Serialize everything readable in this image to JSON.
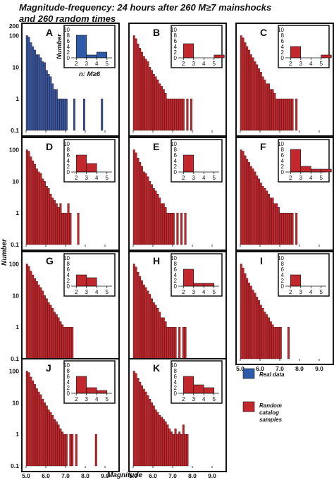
{
  "title_line1": "Magnitude-frequency: 24 hours after 260 M≥7 mainshocks",
  "title_line2": "and 260 random times",
  "xlabel": "Magnitude",
  "ylabel": "Number",
  "inset_ylabel": "Number",
  "inset_xlabel": "n: M≥6",
  "legend": [
    {
      "label": "Real data",
      "color": "#2f5aa8"
    },
    {
      "label": "Random catalog samples",
      "label_lines": [
        "Random",
        "catalog",
        "samples"
      ],
      "color": "#c1272d"
    }
  ],
  "colors": {
    "real": "#2f5aa8",
    "random": "#c1272d"
  },
  "chart_data": [
    {
      "type": "bar",
      "panel": "A",
      "series": "Real data",
      "log_y": true,
      "xlim": [
        5.0,
        9.5
      ],
      "ylim": [
        0.1,
        200
      ],
      "x_ticks": [
        "5.0",
        "6.0",
        "7.0",
        "8.0",
        "9.0"
      ],
      "y_ticks": [
        "0.1",
        "1",
        "10",
        "100",
        "200"
      ],
      "x": [
        5.0,
        5.1,
        5.2,
        5.3,
        5.4,
        5.5,
        5.6,
        5.7,
        5.8,
        5.9,
        6.0,
        6.1,
        6.2,
        6.3,
        6.4,
        6.5,
        6.6,
        6.7,
        6.8,
        6.9,
        7.0,
        7.4,
        7.9,
        8.8
      ],
      "values": [
        100,
        90,
        60,
        45,
        35,
        25,
        25,
        20,
        15,
        14,
        8,
        6,
        5,
        3,
        2,
        2,
        1,
        1,
        1,
        1,
        1,
        1,
        1,
        1
      ],
      "inset": {
        "x": [
          2,
          3,
          4,
          5
        ],
        "values": [
          8,
          1,
          2,
          0
        ],
        "ylim": [
          0,
          10
        ],
        "y_ticks": [
          "0",
          "2",
          "4",
          "6",
          "8",
          "10"
        ],
        "x_ticks": [
          "2",
          "3",
          "4",
          "5"
        ]
      }
    },
    {
      "type": "bar",
      "panel": "B",
      "series": "Random catalog samples",
      "log_y": true,
      "xlim": [
        5.0,
        9.5
      ],
      "ylim": [
        0.1,
        200
      ],
      "x_ticks": [
        "5.0",
        "6.0",
        "7.0",
        "8.0",
        "9.0"
      ],
      "x": [
        5.0,
        5.1,
        5.2,
        5.3,
        5.4,
        5.5,
        5.6,
        5.7,
        5.8,
        5.9,
        6.0,
        6.1,
        6.2,
        6.3,
        6.4,
        6.5,
        6.6,
        6.7,
        6.8,
        6.9,
        7.0,
        7.1,
        7.2,
        7.3,
        7.4,
        7.5,
        7.6,
        7.7,
        7.8,
        7.9
      ],
      "values": [
        100,
        80,
        55,
        40,
        30,
        22,
        18,
        15,
        10,
        8,
        6,
        5,
        4,
        3,
        2.5,
        2,
        1.5,
        1,
        1,
        1,
        1,
        1,
        1,
        1,
        1,
        1,
        0.1,
        1,
        0.1,
        1
      ],
      "inset": {
        "x": [
          2,
          3,
          4,
          5
        ],
        "values": [
          5,
          0,
          0,
          1
        ],
        "ylim": [
          0,
          10
        ],
        "y_ticks": [
          "0",
          "2",
          "4",
          "6",
          "8",
          "10"
        ],
        "x_ticks": [
          "2",
          "3",
          "4",
          "5"
        ]
      }
    },
    {
      "type": "bar",
      "panel": "C",
      "series": "Random catalog samples",
      "log_y": true,
      "xlim": [
        5.0,
        9.5
      ],
      "ylim": [
        0.1,
        200
      ],
      "x_ticks": [
        "5.0",
        "6.0",
        "7.0",
        "8.0",
        "9.0"
      ],
      "x": [
        5.0,
        5.1,
        5.2,
        5.3,
        5.4,
        5.5,
        5.6,
        5.7,
        5.8,
        5.9,
        6.0,
        6.1,
        6.2,
        6.3,
        6.4,
        6.5,
        6.6,
        6.7,
        6.8,
        6.9,
        7.0,
        7.1,
        7.2,
        7.3,
        7.4,
        7.5,
        7.6,
        7.7,
        7.8
      ],
      "values": [
        100,
        85,
        60,
        45,
        35,
        25,
        20,
        15,
        12,
        9,
        7,
        5,
        4,
        3,
        3,
        2,
        2,
        1.5,
        1,
        1,
        1,
        1,
        1,
        1,
        1,
        1,
        1,
        0.1,
        1
      ],
      "inset": {
        "x": [
          2,
          3,
          4,
          5
        ],
        "values": [
          4,
          0,
          0,
          1
        ],
        "ylim": [
          0,
          10
        ],
        "y_ticks": [
          "0",
          "2",
          "4",
          "6",
          "8",
          "10"
        ],
        "x_ticks": [
          "2",
          "3",
          "4",
          "5"
        ]
      }
    },
    {
      "type": "bar",
      "panel": "D",
      "series": "Random catalog samples",
      "log_y": true,
      "xlim": [
        5.0,
        9.5
      ],
      "ylim": [
        0.1,
        200
      ],
      "x_ticks": [
        "5.0",
        "6.0",
        "7.0",
        "8.0",
        "9.0"
      ],
      "x": [
        5.0,
        5.1,
        5.2,
        5.3,
        5.4,
        5.5,
        5.6,
        5.7,
        5.8,
        5.9,
        6.0,
        6.1,
        6.2,
        6.3,
        6.4,
        6.5,
        6.6,
        6.7,
        6.8,
        6.9,
        7.0,
        7.1,
        7.2,
        7.6
      ],
      "values": [
        100,
        90,
        60,
        45,
        35,
        25,
        20,
        18,
        12,
        10,
        7,
        6,
        4,
        3,
        2.5,
        2,
        1.5,
        2,
        1,
        1,
        1,
        2,
        1,
        1
      ],
      "inset": {
        "x": [
          2,
          3,
          4,
          5
        ],
        "values": [
          6,
          3,
          0,
          0
        ],
        "ylim": [
          0,
          10
        ],
        "y_ticks": [
          "0",
          "2",
          "4",
          "6",
          "8",
          "10"
        ],
        "x_ticks": [
          "2",
          "3",
          "4",
          "5"
        ]
      }
    },
    {
      "type": "bar",
      "panel": "E",
      "series": "Random catalog samples",
      "log_y": true,
      "xlim": [
        5.0,
        9.5
      ],
      "ylim": [
        0.1,
        200
      ],
      "x_ticks": [
        "5.0",
        "6.0",
        "7.0",
        "8.0",
        "9.0"
      ],
      "x": [
        5.0,
        5.1,
        5.2,
        5.3,
        5.4,
        5.5,
        5.6,
        5.7,
        5.8,
        5.9,
        6.0,
        6.1,
        6.2,
        6.3,
        6.4,
        6.5,
        6.6,
        6.7,
        6.8,
        6.9,
        7.0,
        7.2,
        7.4,
        7.6
      ],
      "values": [
        100,
        80,
        55,
        40,
        30,
        20,
        18,
        14,
        10,
        8,
        6,
        5,
        4,
        3,
        2,
        2,
        1.5,
        1,
        1,
        1,
        1,
        1,
        1,
        1
      ],
      "inset": {
        "x": [
          2,
          3,
          4,
          5
        ],
        "values": [
          6,
          0,
          0,
          0
        ],
        "ylim": [
          0,
          10
        ],
        "y_ticks": [
          "0",
          "2",
          "4",
          "6",
          "8",
          "10"
        ],
        "x_ticks": [
          "2",
          "3",
          "4",
          "5"
        ]
      }
    },
    {
      "type": "bar",
      "panel": "F",
      "series": "Random catalog samples",
      "log_y": true,
      "xlim": [
        5.0,
        9.5
      ],
      "ylim": [
        0.1,
        200
      ],
      "x_ticks": [
        "5.0",
        "6.0",
        "7.0",
        "8.0",
        "9.0"
      ],
      "x": [
        5.0,
        5.1,
        5.2,
        5.3,
        5.4,
        5.5,
        5.6,
        5.7,
        5.8,
        5.9,
        6.0,
        6.1,
        6.2,
        6.3,
        6.4,
        6.5,
        6.6,
        6.7,
        6.8,
        6.9,
        7.0,
        7.1,
        7.2,
        7.3,
        7.4,
        7.5,
        7.6,
        7.7,
        7.8
      ],
      "values": [
        100,
        90,
        65,
        50,
        40,
        30,
        25,
        20,
        15,
        12,
        9,
        7,
        6,
        5,
        4,
        3,
        3,
        2,
        2,
        1.5,
        1,
        1,
        1,
        1,
        1,
        1,
        1,
        0.1,
        1
      ],
      "inset": {
        "x": [
          2,
          3,
          4,
          5
        ],
        "values": [
          8,
          2,
          1,
          1
        ],
        "ylim": [
          0,
          10
        ],
        "y_ticks": [
          "0",
          "2",
          "4",
          "6",
          "8",
          "10"
        ],
        "x_ticks": [
          "2",
          "3",
          "4",
          "5"
        ]
      }
    },
    {
      "type": "bar",
      "panel": "G",
      "series": "Random catalog samples",
      "log_y": true,
      "xlim": [
        5.0,
        9.5
      ],
      "ylim": [
        0.1,
        200
      ],
      "x_ticks": [
        "5.0",
        "6.0",
        "7.0",
        "8.0",
        "9.0"
      ],
      "x": [
        5.0,
        5.1,
        5.2,
        5.3,
        5.4,
        5.5,
        5.6,
        5.7,
        5.8,
        5.9,
        6.0,
        6.1,
        6.2,
        6.3,
        6.4,
        6.5,
        6.6,
        6.7,
        6.8,
        6.9,
        7.0,
        7.1,
        7.2,
        7.3
      ],
      "values": [
        100,
        85,
        60,
        45,
        35,
        28,
        22,
        18,
        14,
        10,
        8,
        6,
        5,
        4,
        3,
        2.5,
        2,
        1.5,
        1.2,
        1,
        1,
        1,
        1,
        1
      ],
      "inset": {
        "x": [
          2,
          3,
          4,
          5
        ],
        "values": [
          4,
          3,
          0,
          0
        ],
        "ylim": [
          0,
          10
        ],
        "y_ticks": [
          "0",
          "2",
          "4",
          "6",
          "8",
          "10"
        ],
        "x_ticks": [
          "2",
          "3",
          "4",
          "5"
        ]
      }
    },
    {
      "type": "bar",
      "panel": "H",
      "series": "Random catalog samples",
      "log_y": true,
      "xlim": [
        5.0,
        9.5
      ],
      "ylim": [
        0.1,
        200
      ],
      "x_ticks": [
        "5.0",
        "6.0",
        "7.0",
        "8.0",
        "9.0"
      ],
      "x": [
        5.0,
        5.1,
        5.2,
        5.3,
        5.4,
        5.5,
        5.6,
        5.7,
        5.8,
        5.9,
        6.0,
        6.1,
        6.2,
        6.3,
        6.4,
        6.5,
        6.6,
        6.7,
        6.8,
        6.9,
        7.0,
        7.1,
        7.3,
        7.5,
        7.6
      ],
      "values": [
        100,
        80,
        55,
        40,
        30,
        22,
        18,
        14,
        11,
        8,
        6,
        5,
        4,
        3,
        2,
        2,
        1.5,
        1,
        1,
        1,
        1,
        1,
        1,
        1,
        1
      ],
      "inset": {
        "x": [
          2,
          3,
          4,
          5
        ],
        "values": [
          6,
          1,
          1,
          0
        ],
        "ylim": [
          0,
          10
        ],
        "y_ticks": [
          "0",
          "2",
          "4",
          "6",
          "8",
          "10"
        ],
        "x_ticks": [
          "2",
          "3",
          "4",
          "5"
        ]
      }
    },
    {
      "type": "bar",
      "panel": "I",
      "series": "Random catalog samples",
      "log_y": true,
      "xlim": [
        5.0,
        9.5
      ],
      "ylim": [
        0.1,
        200
      ],
      "x_ticks": [
        "5.0",
        "6.0",
        "7.0",
        "8.0",
        "9.0"
      ],
      "x": [
        5.0,
        5.1,
        5.2,
        5.3,
        5.4,
        5.5,
        5.6,
        5.7,
        5.8,
        5.9,
        6.0,
        6.1,
        6.2,
        6.3,
        6.4,
        6.5,
        6.6,
        6.7,
        6.8,
        6.9,
        7.0,
        7.4
      ],
      "values": [
        100,
        75,
        50,
        35,
        25,
        20,
        15,
        12,
        9,
        7,
        5,
        4,
        3,
        2.5,
        2,
        1.5,
        1.2,
        1,
        1,
        1,
        1,
        1
      ],
      "inset": {
        "x": [
          2,
          3,
          4,
          5
        ],
        "values": [
          4,
          0,
          0,
          0
        ],
        "ylim": [
          0,
          10
        ],
        "y_ticks": [
          "0",
          "2",
          "4",
          "6",
          "8",
          "10"
        ],
        "x_ticks": [
          "2",
          "3",
          "4",
          "5"
        ]
      }
    },
    {
      "type": "bar",
      "panel": "J",
      "series": "Random catalog samples",
      "log_y": true,
      "xlim": [
        5.0,
        9.5
      ],
      "ylim": [
        0.1,
        200
      ],
      "x_ticks": [
        "5.0",
        "6.0",
        "7.0",
        "8.0",
        "9.0"
      ],
      "x": [
        5.0,
        5.1,
        5.2,
        5.3,
        5.4,
        5.5,
        5.6,
        5.7,
        5.8,
        5.9,
        6.0,
        6.1,
        6.2,
        6.3,
        6.4,
        6.5,
        6.6,
        6.7,
        6.8,
        6.9,
        7.0,
        7.2,
        7.3,
        7.5,
        8.5
      ],
      "values": [
        100,
        90,
        65,
        50,
        38,
        28,
        22,
        18,
        13,
        10,
        8,
        6,
        5,
        4,
        3,
        2.5,
        2,
        1.5,
        1.2,
        1,
        1,
        1,
        1,
        1,
        1
      ],
      "inset": {
        "x": [
          2,
          3,
          4,
          5
        ],
        "values": [
          6,
          2,
          1,
          0
        ],
        "ylim": [
          0,
          10
        ],
        "y_ticks": [
          "0",
          "2",
          "4",
          "6",
          "8",
          "10"
        ],
        "x_ticks": [
          "2",
          "3",
          "4",
          "5"
        ]
      }
    },
    {
      "type": "bar",
      "panel": "K",
      "series": "Random catalog samples",
      "log_y": true,
      "xlim": [
        5.0,
        9.5
      ],
      "ylim": [
        0.1,
        200
      ],
      "x_ticks": [
        "5.0",
        "6.0",
        "7.0",
        "8.0",
        "9.0"
      ],
      "x": [
        5.0,
        5.1,
        5.2,
        5.3,
        5.4,
        5.5,
        5.6,
        5.7,
        5.8,
        5.9,
        6.0,
        6.1,
        6.2,
        6.3,
        6.4,
        6.5,
        6.6,
        6.7,
        6.8,
        6.9,
        7.0,
        7.1,
        7.2,
        7.3,
        7.4,
        7.5,
        7.6,
        7.7
      ],
      "values": [
        100,
        85,
        60,
        45,
        35,
        27,
        22,
        17,
        13,
        10,
        8,
        6,
        5,
        4,
        3.5,
        3,
        2.5,
        2,
        1.5,
        1.2,
        1,
        1.5,
        1,
        1.2,
        1,
        2,
        1,
        1
      ],
      "inset": {
        "x": [
          2,
          3,
          4,
          5
        ],
        "values": [
          6,
          3,
          2,
          0
        ],
        "ylim": [
          0,
          10
        ],
        "y_ticks": [
          "0",
          "2",
          "4",
          "6",
          "8",
          "10"
        ],
        "x_ticks": [
          "2",
          "3",
          "4",
          "5"
        ]
      }
    }
  ]
}
